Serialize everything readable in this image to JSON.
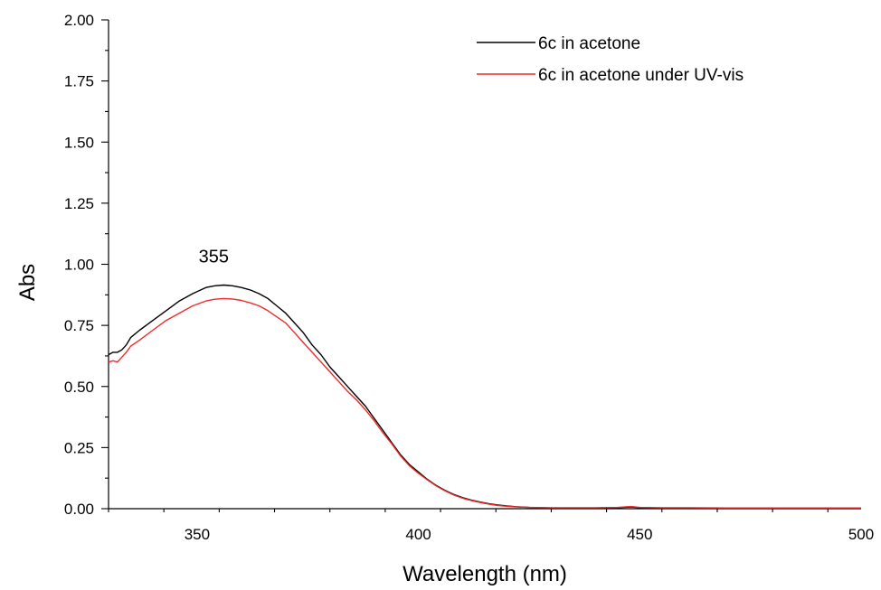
{
  "chart_data": {
    "type": "line",
    "title": "",
    "xlabel": "Wavelength (nm)",
    "ylabel": "Abs",
    "xlim": [
      330,
      500
    ],
    "ylim": [
      0,
      2.0
    ],
    "x_ticks": [
      350,
      400,
      450,
      500
    ],
    "x_tick_labels": [
      "350",
      "400",
      "450",
      "500"
    ],
    "y_ticks": [
      0,
      0.25,
      0.5,
      0.75,
      1.0,
      1.25,
      1.5,
      1.75,
      2.0
    ],
    "y_tick_labels": [
      "0.00",
      "0.25",
      "0.50",
      "0.75",
      "1.00",
      "1.25",
      "1.50",
      "1.75",
      "2.00"
    ],
    "grid": false,
    "legend_position": "top-right",
    "annotations": [
      {
        "text": "355",
        "x": 355,
        "y": 1.0
      }
    ],
    "series": [
      {
        "name": "6c in acetone",
        "color": "#000000",
        "x": [
          330,
          331,
          332,
          333,
          334,
          335,
          337,
          340,
          343,
          346,
          349,
          352,
          354,
          356,
          358,
          360,
          362,
          364,
          366,
          368,
          370,
          372,
          374,
          376,
          378,
          380,
          382,
          384,
          386,
          388,
          390,
          392,
          394,
          396,
          398,
          400,
          402,
          404,
          406,
          408,
          410,
          412,
          414,
          416,
          418,
          420,
          422,
          425,
          430,
          435,
          440,
          445,
          448,
          450,
          455,
          460,
          470,
          480,
          490,
          500
        ],
        "y": [
          0.63,
          0.64,
          0.64,
          0.65,
          0.67,
          0.7,
          0.73,
          0.77,
          0.81,
          0.85,
          0.88,
          0.905,
          0.912,
          0.915,
          0.912,
          0.905,
          0.895,
          0.88,
          0.86,
          0.83,
          0.8,
          0.76,
          0.72,
          0.67,
          0.63,
          0.58,
          0.54,
          0.5,
          0.46,
          0.42,
          0.37,
          0.32,
          0.27,
          0.22,
          0.18,
          0.15,
          0.12,
          0.095,
          0.075,
          0.058,
          0.045,
          0.035,
          0.027,
          0.02,
          0.015,
          0.011,
          0.008,
          0.005,
          0.003,
          0.003,
          0.003,
          0.004,
          0.007,
          0.004,
          0.003,
          0.003,
          0.003,
          0.002,
          0.002,
          0.002
        ]
      },
      {
        "name": "6c in acetone under UV-vis",
        "color": "#ee2a2a",
        "x": [
          330,
          331,
          332,
          333,
          334,
          335,
          337,
          340,
          343,
          346,
          349,
          352,
          354,
          356,
          358,
          360,
          362,
          364,
          366,
          368,
          370,
          372,
          374,
          376,
          378,
          380,
          382,
          384,
          386,
          388,
          390,
          392,
          394,
          396,
          398,
          400,
          402,
          404,
          406,
          408,
          410,
          412,
          414,
          416,
          418,
          420,
          422,
          425,
          430,
          435,
          440,
          445,
          448,
          450,
          455,
          460,
          470,
          480,
          490,
          500
        ],
        "y": [
          0.6,
          0.605,
          0.6,
          0.62,
          0.64,
          0.665,
          0.69,
          0.73,
          0.77,
          0.8,
          0.83,
          0.85,
          0.857,
          0.86,
          0.858,
          0.852,
          0.842,
          0.83,
          0.81,
          0.785,
          0.76,
          0.72,
          0.68,
          0.64,
          0.6,
          0.56,
          0.52,
          0.48,
          0.445,
          0.405,
          0.36,
          0.31,
          0.265,
          0.215,
          0.175,
          0.145,
          0.118,
          0.093,
          0.073,
          0.056,
          0.043,
          0.033,
          0.025,
          0.018,
          0.013,
          0.01,
          0.007,
          0.005,
          0.004,
          0.004,
          0.004,
          0.005,
          0.009,
          0.005,
          0.004,
          0.004,
          0.003,
          0.003,
          0.003,
          0.003
        ]
      }
    ]
  }
}
